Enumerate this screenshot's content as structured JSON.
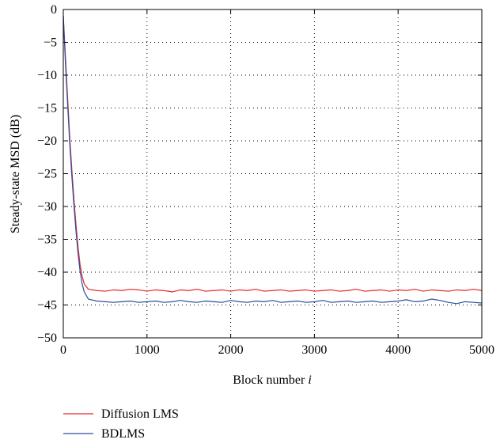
{
  "chart_data": {
    "type": "line",
    "title": "",
    "xlabel": "Block number",
    "xlabel_var": "i",
    "ylabel": "Steady-state MSD (dB)",
    "xlim": [
      0,
      5000
    ],
    "ylim": [
      -50,
      0
    ],
    "xticks": [
      0,
      1000,
      2000,
      3000,
      4000,
      5000
    ],
    "yticks": [
      0,
      -5,
      -10,
      -15,
      -20,
      -25,
      -30,
      -35,
      -40,
      -45,
      -50
    ],
    "grid": true,
    "legend_position": "below",
    "series": [
      {
        "name": "Diffusion LMS",
        "color": "#e8262a",
        "x": [
          0,
          25,
          50,
          75,
          100,
          125,
          150,
          175,
          200,
          225,
          250,
          300,
          400,
          500,
          600,
          700,
          800,
          900,
          1000,
          1100,
          1200,
          1300,
          1400,
          1500,
          1600,
          1700,
          1800,
          1900,
          2000,
          2100,
          2200,
          2300,
          2400,
          2500,
          2600,
          2700,
          2800,
          2900,
          3000,
          3100,
          3200,
          3300,
          3400,
          3500,
          3600,
          3700,
          3800,
          3900,
          4000,
          4100,
          4200,
          4300,
          4400,
          4500,
          4600,
          4700,
          4800,
          4900,
          5000
        ],
        "values": [
          -1,
          -7,
          -13,
          -19,
          -24,
          -28.5,
          -32.5,
          -36,
          -38.8,
          -40.6,
          -41.8,
          -42.6,
          -42.8,
          -42.9,
          -42.7,
          -42.8,
          -42.6,
          -42.7,
          -42.9,
          -42.7,
          -42.8,
          -43,
          -42.7,
          -42.8,
          -42.6,
          -42.9,
          -42.8,
          -42.7,
          -42.9,
          -42.7,
          -42.8,
          -42.6,
          -42.9,
          -42.8,
          -42.7,
          -42.9,
          -42.8,
          -42.7,
          -42.9,
          -42.8,
          -42.7,
          -42.9,
          -42.8,
          -42.6,
          -42.9,
          -42.8,
          -42.7,
          -42.9,
          -42.7,
          -42.8,
          -42.6,
          -42.9,
          -42.7,
          -42.8,
          -42.9,
          -42.7,
          -42.8,
          -42.6,
          -42.8
        ]
      },
      {
        "name": "BDLMS",
        "color": "#2a4fa0",
        "x": [
          0,
          25,
          50,
          75,
          100,
          125,
          150,
          175,
          200,
          225,
          250,
          300,
          400,
          500,
          600,
          700,
          800,
          900,
          1000,
          1100,
          1200,
          1300,
          1400,
          1500,
          1600,
          1700,
          1800,
          1900,
          2000,
          2100,
          2200,
          2300,
          2400,
          2500,
          2600,
          2700,
          2800,
          2900,
          3000,
          3100,
          3200,
          3300,
          3400,
          3500,
          3600,
          3700,
          3800,
          3900,
          4000,
          4100,
          4200,
          4300,
          4400,
          4500,
          4600,
          4700,
          4800,
          4900,
          5000
        ],
        "values": [
          -1,
          -8,
          -14,
          -20,
          -25,
          -29.5,
          -33.5,
          -37,
          -39.8,
          -41.8,
          -43,
          -44.1,
          -44.4,
          -44.5,
          -44.6,
          -44.5,
          -44.4,
          -44.6,
          -44.5,
          -44.4,
          -44.6,
          -44.5,
          -44.3,
          -44.5,
          -44.6,
          -44.4,
          -44.5,
          -44.6,
          -44.3,
          -44.5,
          -44.6,
          -44.4,
          -44.5,
          -44.3,
          -44.6,
          -44.5,
          -44.4,
          -44.6,
          -44.5,
          -44.3,
          -44.6,
          -44.5,
          -44.4,
          -44.6,
          -44.5,
          -44.4,
          -44.6,
          -44.5,
          -44.4,
          -44.2,
          -44.5,
          -44.4,
          -44.1,
          -44.3,
          -44.6,
          -44.8,
          -44.5,
          -44.6,
          -44.7
        ]
      }
    ]
  }
}
